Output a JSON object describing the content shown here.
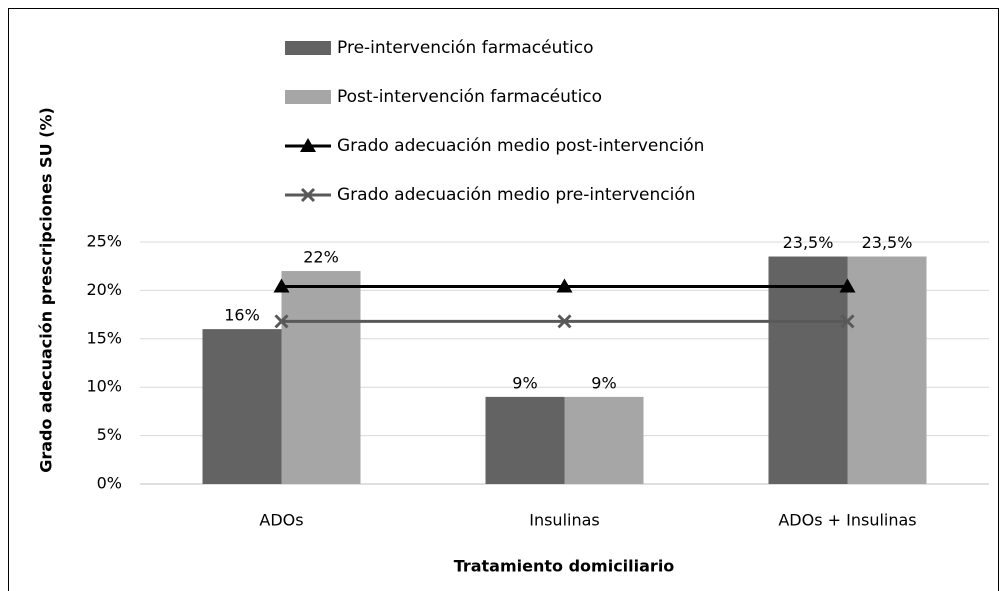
{
  "chart_data": {
    "type": "bar",
    "categories": [
      "ADOs",
      "Insulinas",
      "ADOs + Insulinas"
    ],
    "series": [
      {
        "name": "Pre-intervención farmacéutico",
        "type": "bar",
        "color": "#636363",
        "values": [
          16,
          9,
          23.5
        ],
        "value_labels": [
          "16%",
          "9%",
          "23,5%"
        ]
      },
      {
        "name": "Post-intervención farmacéutico",
        "type": "bar",
        "color": "#a6a6a6",
        "values": [
          22,
          9,
          23.5
        ],
        "value_labels": [
          "22%",
          "9%",
          "23,5%"
        ]
      },
      {
        "name": "Grado adecuación medio post-intervención",
        "type": "line",
        "marker": "triangle",
        "color": "#000000",
        "values": [
          20.4,
          20.4,
          20.4
        ]
      },
      {
        "name": "Grado adecuación medio pre-intervención",
        "type": "line",
        "marker": "x",
        "color": "#595959",
        "values": [
          16.8,
          16.8,
          16.8
        ]
      }
    ],
    "x_label": "Tratamiento domiciliario",
    "y_label": "Grado adecuación prescripciones SU (%)",
    "ylim": [
      0,
      25
    ],
    "yticks": [
      {
        "value": 0,
        "label": "0%"
      },
      {
        "value": 5,
        "label": "5%"
      },
      {
        "value": 10,
        "label": "10%"
      },
      {
        "value": 15,
        "label": "15%"
      },
      {
        "value": 20,
        "label": "20%"
      },
      {
        "value": 25,
        "label": "25%"
      }
    ],
    "grid": true,
    "legend": "top"
  }
}
